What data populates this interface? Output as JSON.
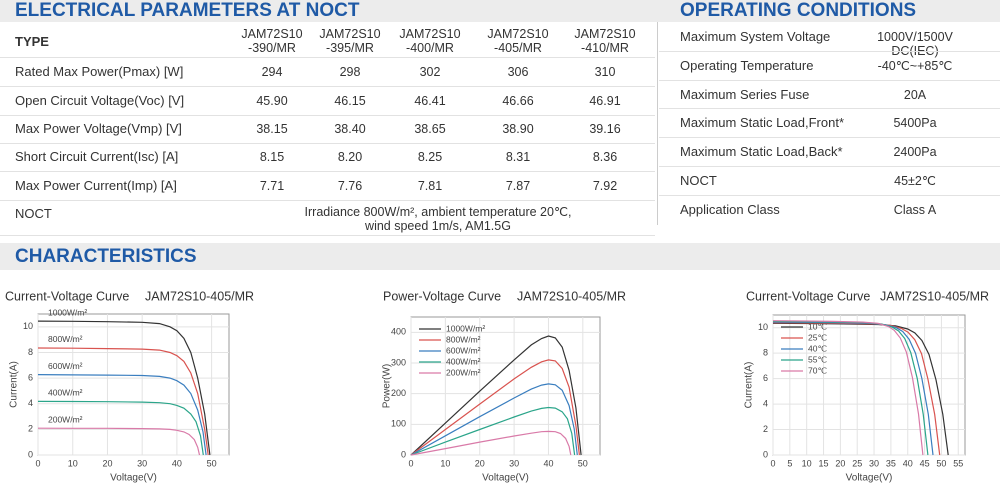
{
  "electrical": {
    "title": "ELECTRICAL PARAMETERS AT NOCT",
    "type_label": "TYPE",
    "models": [
      [
        "JAM72S10",
        "-390/MR"
      ],
      [
        "JAM72S10",
        "-395/MR"
      ],
      [
        "JAM72S10",
        "-400/MR"
      ],
      [
        "JAM72S10",
        "-405/MR"
      ],
      [
        "JAM72S10",
        "-410/MR"
      ]
    ],
    "rows": [
      {
        "label": "Rated Max Power(Pmax) [W]",
        "values": [
          "294",
          "298",
          "302",
          "306",
          "310"
        ]
      },
      {
        "label": "Open Circuit Voltage(Voc) [V]",
        "values": [
          "45.90",
          "46.15",
          "46.41",
          "46.66",
          "46.91"
        ]
      },
      {
        "label": "Max Power Voltage(Vmp) [V]",
        "values": [
          "38.15",
          "38.40",
          "38.65",
          "38.90",
          "39.16"
        ]
      },
      {
        "label": "Short Circuit Current(Isc) [A]",
        "values": [
          "8.15",
          "8.20",
          "8.25",
          "8.31",
          "8.36"
        ]
      },
      {
        "label": "Max Power Current(Imp) [A]",
        "values": [
          "7.71",
          "7.76",
          "7.81",
          "7.87",
          "7.92"
        ]
      }
    ],
    "noct": {
      "label": "NOCT",
      "text": [
        "Irradiance 800W/m², ambient temperature 20℃,",
        "wind speed 1m/s, AM1.5G"
      ]
    }
  },
  "operating": {
    "title": "OPERATING CONDITIONS",
    "rows": [
      [
        "Maximum System Voltage",
        "1000V/1500V DC(IEC)"
      ],
      [
        "Operating Temperature",
        "-40℃~+85℃"
      ],
      [
        "Maximum Series Fuse",
        "20A"
      ],
      [
        "Maximum Static Load,Front*",
        "5400Pa"
      ],
      [
        "Maximum Static Load,Back*",
        "2400Pa"
      ],
      [
        "NOCT",
        "45±2℃"
      ],
      [
        "Application Class",
        "Class A"
      ]
    ]
  },
  "characteristics": {
    "title": "CHARACTERISTICS"
  },
  "chart_data": [
    {
      "type": "line",
      "title": "Current-Voltage Curve",
      "subtitle": "JAM72S10-405/MR",
      "x_label": "Voltage(V)",
      "y_label": "Current(A)",
      "xlim": [
        0,
        55
      ],
      "ylim": [
        0,
        11
      ],
      "xticks": [
        0,
        10,
        20,
        30,
        40,
        50
      ],
      "yticks": [
        0,
        2,
        4,
        6,
        8,
        10
      ],
      "grid": true,
      "legend": "inline",
      "series": [
        {
          "name": "1000W/m²",
          "color": "#333333",
          "x": [
            0,
            10,
            20,
            30,
            35,
            38,
            40,
            42,
            44,
            46,
            48,
            49.5
          ],
          "values": [
            10.45,
            10.43,
            10.4,
            10.35,
            10.25,
            10.0,
            9.7,
            9.1,
            8.0,
            6.0,
            3.2,
            0
          ]
        },
        {
          "name": "800W/m²",
          "color": "#d9534f",
          "x": [
            0,
            10,
            20,
            30,
            35,
            38,
            40,
            42,
            44,
            46,
            48,
            49
          ],
          "values": [
            8.35,
            8.33,
            8.3,
            8.26,
            8.18,
            8.0,
            7.75,
            7.3,
            6.4,
            4.8,
            2.0,
            0
          ]
        },
        {
          "name": "600W/m²",
          "color": "#3a7ebf",
          "x": [
            0,
            10,
            20,
            30,
            35,
            38,
            40,
            42,
            44,
            46,
            47.5,
            48.4
          ],
          "values": [
            6.27,
            6.25,
            6.23,
            6.2,
            6.13,
            6.0,
            5.8,
            5.45,
            4.8,
            3.5,
            1.8,
            0
          ]
        },
        {
          "name": "400W/m²",
          "color": "#2ba58a",
          "x": [
            0,
            10,
            20,
            30,
            35,
            38,
            40,
            42,
            44,
            45.5,
            46.8,
            47.6
          ],
          "values": [
            4.18,
            4.17,
            4.16,
            4.13,
            4.08,
            4.0,
            3.87,
            3.65,
            3.2,
            2.6,
            1.5,
            0
          ]
        },
        {
          "name": "200W/m²",
          "color": "#d97aa8",
          "x": [
            0,
            10,
            20,
            30,
            35,
            38,
            40,
            42,
            43.5,
            45,
            46,
            46.5
          ],
          "values": [
            2.09,
            2.08,
            2.08,
            2.06,
            2.04,
            2.0,
            1.93,
            1.8,
            1.6,
            1.2,
            0.6,
            0
          ]
        }
      ]
    },
    {
      "type": "line",
      "title": "Power-Voltage Curve",
      "subtitle": "JAM72S10-405/MR",
      "x_label": "Voltage(V)",
      "y_label": "Power(W)",
      "xlim": [
        0,
        55
      ],
      "ylim": [
        0,
        450
      ],
      "xticks": [
        0,
        10,
        20,
        30,
        40,
        50
      ],
      "yticks": [
        0,
        100,
        200,
        300,
        400
      ],
      "grid": true,
      "legend": "upper left",
      "series": [
        {
          "name": "1000W/m²",
          "color": "#333333",
          "x": [
            0,
            10,
            20,
            30,
            35,
            38,
            40,
            42,
            44,
            46,
            48,
            49.5
          ],
          "values": [
            0,
            104,
            208,
            310,
            359,
            380,
            388,
            382,
            352,
            276,
            154,
            0
          ]
        },
        {
          "name": "800W/m²",
          "color": "#d9534f",
          "x": [
            0,
            10,
            20,
            30,
            35,
            38,
            40,
            42,
            44,
            46,
            48,
            49
          ],
          "values": [
            0,
            83,
            166,
            248,
            286,
            304,
            310,
            307,
            282,
            221,
            96,
            0
          ]
        },
        {
          "name": "600W/m²",
          "color": "#3a7ebf",
          "x": [
            0,
            10,
            20,
            30,
            35,
            38,
            40,
            42,
            44,
            46,
            47.5,
            48.4
          ],
          "values": [
            0,
            62.5,
            125,
            186,
            215,
            228,
            232,
            229,
            211,
            161,
            85.5,
            0
          ]
        },
        {
          "name": "400W/m²",
          "color": "#2ba58a",
          "x": [
            0,
            10,
            20,
            30,
            35,
            38,
            40,
            42,
            44,
            45.5,
            46.8,
            47.6
          ],
          "values": [
            0,
            42,
            83,
            124,
            143,
            152,
            155,
            153,
            141,
            118,
            70,
            0
          ]
        },
        {
          "name": "200W/m²",
          "color": "#d97aa8",
          "x": [
            0,
            10,
            20,
            30,
            35,
            38,
            40,
            42,
            43.5,
            45,
            46,
            46.5
          ],
          "values": [
            0,
            21,
            42,
            62,
            71,
            76,
            77,
            76,
            70,
            54,
            28,
            0
          ]
        }
      ]
    },
    {
      "type": "line",
      "title": "Current-Voltage Curve",
      "subtitle": "JAM72S10-405/MR",
      "x_label": "Voltage(V)",
      "y_label": "Current(A)",
      "xlim": [
        0,
        57
      ],
      "ylim": [
        0,
        11
      ],
      "xticks": [
        0,
        5,
        10,
        15,
        20,
        25,
        30,
        35,
        40,
        45,
        50,
        55
      ],
      "yticks": [
        0,
        2,
        4,
        6,
        8,
        10
      ],
      "grid": true,
      "legend": "upper left",
      "series": [
        {
          "name": "10℃",
          "color": "#333333",
          "x": [
            0,
            10.4,
            20.8,
            31.2,
            36.4,
            40,
            42.1,
            44.2,
            46.3,
            48.4,
            50.4,
            52
          ],
          "values": [
            10.35,
            10.33,
            10.3,
            10.25,
            10.14,
            9.9,
            9.6,
            9.0,
            7.9,
            5.9,
            3.2,
            0
          ]
        },
        {
          "name": "25℃",
          "color": "#d9534f",
          "x": [
            0,
            9.9,
            19.8,
            29.7,
            34.7,
            38.1,
            40.1,
            42.1,
            44.1,
            46,
            48,
            49.5
          ],
          "values": [
            10.4,
            10.38,
            10.35,
            10.3,
            10.2,
            9.95,
            9.65,
            9.06,
            7.97,
            5.97,
            3.18,
            0
          ]
        },
        {
          "name": "40℃",
          "color": "#3a7ebf",
          "x": [
            0,
            9.5,
            19,
            28.5,
            33.3,
            36.6,
            38.5,
            40.4,
            42.3,
            44.2,
            46.1,
            47.5
          ],
          "values": [
            10.45,
            10.43,
            10.4,
            10.35,
            10.24,
            10.0,
            9.7,
            9.1,
            8.0,
            6.0,
            3.2,
            0
          ]
        },
        {
          "name": "55℃",
          "color": "#2ba58a",
          "x": [
            0,
            9.2,
            18.4,
            27.6,
            32.2,
            35.4,
            37.3,
            39.1,
            40.9,
            42.8,
            44.6,
            46
          ],
          "values": [
            10.5,
            10.48,
            10.45,
            10.4,
            10.29,
            10.05,
            9.74,
            9.15,
            8.04,
            6.03,
            3.21,
            0
          ]
        },
        {
          "name": "70℃",
          "color": "#d97aa8",
          "x": [
            0,
            8.9,
            17.8,
            26.7,
            31.2,
            34.3,
            36,
            37.8,
            39.6,
            41.4,
            43.2,
            44.5
          ],
          "values": [
            10.55,
            10.53,
            10.5,
            10.44,
            10.34,
            10.1,
            9.79,
            9.19,
            8.08,
            6.06,
            3.23,
            0
          ]
        }
      ]
    }
  ]
}
